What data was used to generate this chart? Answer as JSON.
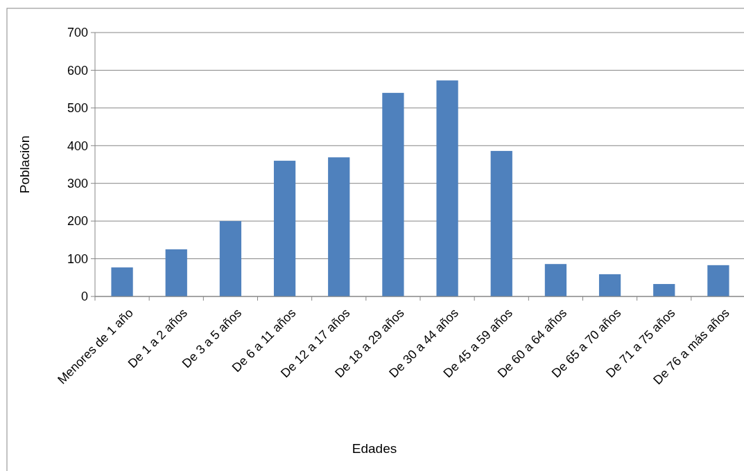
{
  "chart_data": {
    "type": "bar",
    "xlabel": "Edades",
    "ylabel": "Población",
    "categories": [
      "Menores de 1 año",
      "De 1 a 2 años",
      "De 3 a 5 años",
      "De 6 a 11 años",
      "De 12 a 17 años",
      "De 18 a 29 años",
      "De 30 a 44 años",
      "De 45 a 59 años",
      "De 60 a 64 años",
      "De 65 a 70 años",
      "De 71 a 75 años",
      "De 76 a más años"
    ],
    "values": [
      77,
      125,
      200,
      360,
      369,
      540,
      573,
      386,
      86,
      59,
      33,
      83
    ],
    "color": "#4f81bd",
    "ylim": [
      0,
      700
    ],
    "yticks": [
      0,
      100,
      200,
      300,
      400,
      500,
      600,
      700
    ],
    "grid": "y"
  }
}
